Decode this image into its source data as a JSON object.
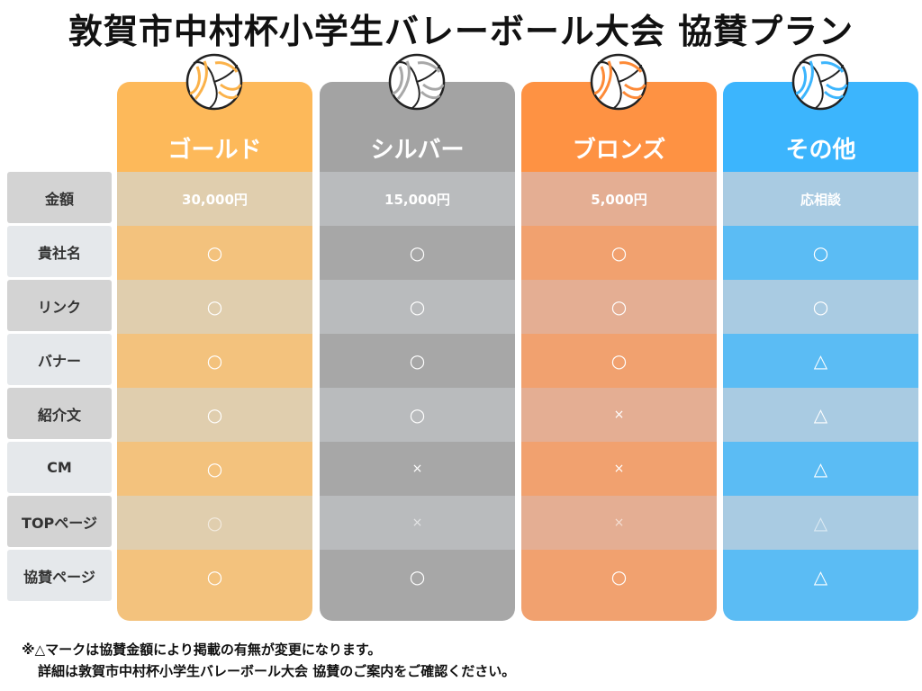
{
  "title": "敦賀市中村杯小学生バレーボール大会 協賛プラン",
  "row_labels": [
    "金額",
    "貴社名",
    "リンク",
    "バナー",
    "紹介文",
    "CM",
    "TOPページ",
    "協賛ページ"
  ],
  "plans": [
    {
      "name": "ゴールド",
      "price": "30,000円",
      "marks": [
        "○",
        "○",
        "○",
        "○",
        "○",
        "○",
        "○"
      ],
      "colors": {
        "header": "#fdb95a",
        "price": "#e0ceae",
        "light": "#e0ceae",
        "dark": "#f3c27d",
        "ball": "#fbb24a"
      }
    },
    {
      "name": "シルバー",
      "price": "15,000円",
      "marks": [
        "○",
        "○",
        "○",
        "○",
        "×",
        "×",
        "○"
      ],
      "colors": {
        "header": "#a3a3a3",
        "price": "#b9bbbd",
        "light": "#b9bbbd",
        "dark": "#a7a7a7",
        "ball": "#a8a8a8"
      }
    },
    {
      "name": "ブロンズ",
      "price": "5,000円",
      "marks": [
        "○",
        "○",
        "○",
        "×",
        "×",
        "×",
        "○"
      ],
      "colors": {
        "header": "#fe9243",
        "price": "#e4ae93",
        "light": "#e4ae93",
        "dark": "#f1a16f",
        "ball": "#fd8a37"
      }
    },
    {
      "name": "その他",
      "price": "応相談",
      "marks": [
        "○",
        "○",
        "△",
        "△",
        "△",
        "△",
        "△"
      ],
      "colors": {
        "header": "#3cb5fd",
        "price": "#a9cbe2",
        "light": "#a9cbe2",
        "dark": "#5bbcf4",
        "ball": "#3cb5fd"
      }
    }
  ],
  "note_line1": "※△マークは協賛金額により掲載の有無が変更になります。",
  "note_line2": "詳細は敦賀市中村杯小学生バレーボール大会 協賛のご案内をご確認ください。"
}
